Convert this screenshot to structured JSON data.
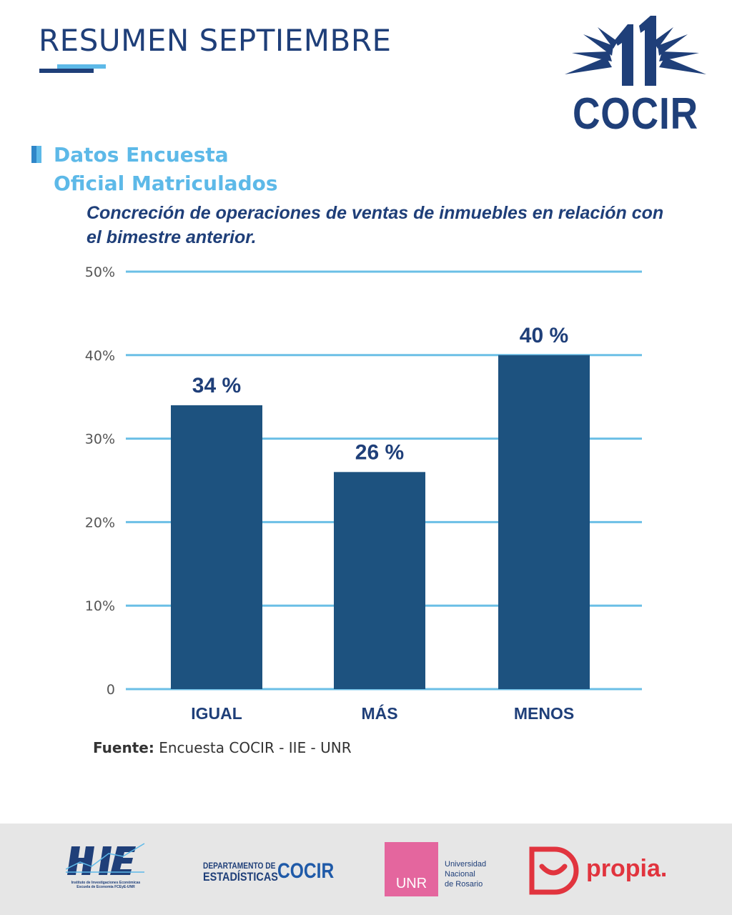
{
  "header": {
    "title": "RESUMEN SEPTIEMBRE",
    "logo_text": "COCIR",
    "logo_number": "11"
  },
  "section": {
    "title_line1": "Datos Encuesta",
    "title_line2": "Oficial Matriculados"
  },
  "chart_data": {
    "type": "bar",
    "title": "Concreción de operaciones de ventas de inmuebles en relación con el bimestre anterior.",
    "categories": [
      "IGUAL",
      "MÁS",
      "MENOS"
    ],
    "values": [
      34,
      26,
      40
    ],
    "data_labels": [
      "34 %",
      "26 %",
      "40 %"
    ],
    "ylim": [
      0,
      50
    ],
    "yticks": [
      0,
      10,
      20,
      30,
      40,
      50
    ],
    "ytick_labels": [
      "0",
      "10%",
      "20%",
      "30%",
      "40%",
      "50%"
    ],
    "xlabel": "",
    "ylabel": "",
    "grid": true,
    "legend": "none",
    "colors": {
      "bar": "#1d527f",
      "grid": "#6bbfe6",
      "label": "#1f3f79",
      "tick": "#555555"
    }
  },
  "source": {
    "label": "Fuente:",
    "text": "Encuesta COCIR - IIE - UNR"
  },
  "footer": {
    "iie": {
      "logo_text": "IIE",
      "caption_line1": "Instituto de Investigaciones Económicas",
      "caption_line2": "Escuela de Economía FCEyE-UNR"
    },
    "dept": {
      "line1": "DEPARTAMENTO DE",
      "line2": "ESTADÍSTICAS",
      "name": "COCIR"
    },
    "unr": {
      "box_text": "UNR",
      "line1": "Universidad",
      "line2": "Nacional",
      "line3": "de Rosario"
    },
    "propia": {
      "text": "propia."
    }
  }
}
